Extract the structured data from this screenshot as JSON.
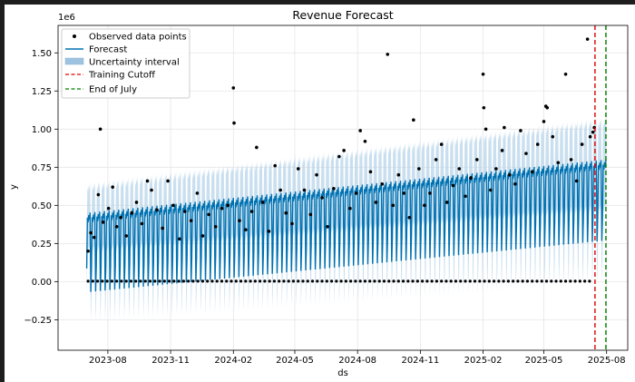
{
  "chart_data": {
    "type": "line",
    "title": "Revenue Forecast",
    "xlabel": "ds",
    "ylabel": "y",
    "y_offset_label": "1e6",
    "xlim": [
      "2023-05-20",
      "2025-09-01"
    ],
    "ylim": [
      -0.45,
      1.68
    ],
    "y_scale_note": "values in units of 1e6",
    "x_ticks": [
      {
        "date": "2023-08-01",
        "label": "2023-08"
      },
      {
        "date": "2023-11-01",
        "label": "2023-11"
      },
      {
        "date": "2024-02-01",
        "label": "2024-02"
      },
      {
        "date": "2024-05-01",
        "label": "2024-05"
      },
      {
        "date": "2024-08-01",
        "label": "2024-08"
      },
      {
        "date": "2024-11-01",
        "label": "2024-11"
      },
      {
        "date": "2025-02-01",
        "label": "2025-02"
      },
      {
        "date": "2025-05-01",
        "label": "2025-05"
      },
      {
        "date": "2025-08-01",
        "label": "2025-08"
      }
    ],
    "y_ticks": [
      {
        "value": 1.5,
        "label": "1.50"
      },
      {
        "value": 1.25,
        "label": "1.25"
      },
      {
        "value": 1.0,
        "label": "1.00"
      },
      {
        "value": 0.75,
        "label": "0.75"
      },
      {
        "value": 0.5,
        "label": "0.50"
      },
      {
        "value": 0.25,
        "label": "0.25"
      },
      {
        "value": 0.0,
        "label": "0.00"
      },
      {
        "value": -0.25,
        "label": "−0.25"
      }
    ],
    "grid": true,
    "legend": {
      "position": "top-left",
      "entries": [
        {
          "label": "Observed data points",
          "style": "dot",
          "color": "#000000"
        },
        {
          "label": "Forecast",
          "style": "line",
          "color": "#0072B2"
        },
        {
          "label": "Uncertainty interval",
          "style": "band",
          "color": "#9ec3e0"
        },
        {
          "label": "Training Cutoff",
          "style": "dashed",
          "color": "#e00000"
        },
        {
          "label": "End of July",
          "style": "dashed",
          "color": "#008000"
        }
      ]
    },
    "colors": {
      "forecast": "#0072B2",
      "band": "#b7d4ea",
      "cutoff": "#e00000",
      "end": "#008000",
      "points": "#000000"
    },
    "forecast": {
      "start": "2023-07-01",
      "end": "2025-07-31",
      "weekly_low_start": -0.07,
      "weekly_low_end": 0.27,
      "weekly_high_start": 0.45,
      "weekly_high_end": 0.8,
      "band_width": 0.2
    },
    "vlines": [
      {
        "name": "Training Cutoff",
        "date": "2025-07-15"
      },
      {
        "name": "End of July",
        "date": "2025-07-31"
      }
    ],
    "observed_points": [
      {
        "x": "2023-07-03",
        "y": 0.2
      },
      {
        "x": "2023-07-07",
        "y": 0.32
      },
      {
        "x": "2023-07-12",
        "y": 0.29
      },
      {
        "x": "2023-07-18",
        "y": 0.57
      },
      {
        "x": "2023-07-21",
        "y": 1.0
      },
      {
        "x": "2023-07-25",
        "y": 0.39
      },
      {
        "x": "2023-08-02",
        "y": 0.48
      },
      {
        "x": "2023-08-08",
        "y": 0.62
      },
      {
        "x": "2023-08-14",
        "y": 0.36
      },
      {
        "x": "2023-08-20",
        "y": 0.42
      },
      {
        "x": "2023-08-28",
        "y": 0.3
      },
      {
        "x": "2023-09-05",
        "y": 0.45
      },
      {
        "x": "2023-09-12",
        "y": 0.52
      },
      {
        "x": "2023-09-20",
        "y": 0.38
      },
      {
        "x": "2023-09-28",
        "y": 0.66
      },
      {
        "x": "2023-10-04",
        "y": 0.6
      },
      {
        "x": "2023-10-12",
        "y": 0.47
      },
      {
        "x": "2023-10-20",
        "y": 0.35
      },
      {
        "x": "2023-10-28",
        "y": 0.66
      },
      {
        "x": "2023-11-05",
        "y": 0.5
      },
      {
        "x": "2023-11-14",
        "y": 0.28
      },
      {
        "x": "2023-11-22",
        "y": 0.46
      },
      {
        "x": "2023-12-01",
        "y": 0.4
      },
      {
        "x": "2023-12-10",
        "y": 0.58
      },
      {
        "x": "2023-12-18",
        "y": 0.3
      },
      {
        "x": "2023-12-27",
        "y": 0.44
      },
      {
        "x": "2024-01-06",
        "y": 0.36
      },
      {
        "x": "2024-01-15",
        "y": 0.48
      },
      {
        "x": "2024-01-24",
        "y": 0.5
      },
      {
        "x": "2024-02-01",
        "y": 1.27
      },
      {
        "x": "2024-02-02",
        "y": 1.04
      },
      {
        "x": "2024-02-10",
        "y": 0.4
      },
      {
        "x": "2024-02-19",
        "y": 0.34
      },
      {
        "x": "2024-02-28",
        "y": 0.46
      },
      {
        "x": "2024-03-06",
        "y": 0.88
      },
      {
        "x": "2024-03-15",
        "y": 0.52
      },
      {
        "x": "2024-03-24",
        "y": 0.33
      },
      {
        "x": "2024-04-02",
        "y": 0.76
      },
      {
        "x": "2024-04-10",
        "y": 0.6
      },
      {
        "x": "2024-04-18",
        "y": 0.45
      },
      {
        "x": "2024-04-27",
        "y": 0.38
      },
      {
        "x": "2024-05-06",
        "y": 0.74
      },
      {
        "x": "2024-05-15",
        "y": 0.6
      },
      {
        "x": "2024-05-24",
        "y": 0.44
      },
      {
        "x": "2024-06-02",
        "y": 0.7
      },
      {
        "x": "2024-06-10",
        "y": 0.55
      },
      {
        "x": "2024-06-18",
        "y": 0.36
      },
      {
        "x": "2024-06-27",
        "y": 0.61
      },
      {
        "x": "2024-07-05",
        "y": 0.82
      },
      {
        "x": "2024-07-12",
        "y": 0.86
      },
      {
        "x": "2024-07-21",
        "y": 0.48
      },
      {
        "x": "2024-07-30",
        "y": 0.58
      },
      {
        "x": "2024-08-05",
        "y": 0.99
      },
      {
        "x": "2024-08-12",
        "y": 0.92
      },
      {
        "x": "2024-08-20",
        "y": 0.72
      },
      {
        "x": "2024-08-28",
        "y": 0.52
      },
      {
        "x": "2024-09-06",
        "y": 0.64
      },
      {
        "x": "2024-09-14",
        "y": 1.49
      },
      {
        "x": "2024-09-22",
        "y": 0.5
      },
      {
        "x": "2024-09-30",
        "y": 0.7
      },
      {
        "x": "2024-10-08",
        "y": 0.58
      },
      {
        "x": "2024-10-16",
        "y": 0.42
      },
      {
        "x": "2024-10-22",
        "y": 1.06
      },
      {
        "x": "2024-10-30",
        "y": 0.74
      },
      {
        "x": "2024-11-07",
        "y": 0.5
      },
      {
        "x": "2024-11-15",
        "y": 0.58
      },
      {
        "x": "2024-11-24",
        "y": 0.8
      },
      {
        "x": "2024-12-02",
        "y": 0.9
      },
      {
        "x": "2024-12-10",
        "y": 0.52
      },
      {
        "x": "2024-12-19",
        "y": 0.63
      },
      {
        "x": "2024-12-28",
        "y": 0.74
      },
      {
        "x": "2025-01-06",
        "y": 0.56
      },
      {
        "x": "2025-01-14",
        "y": 0.68
      },
      {
        "x": "2025-01-23",
        "y": 0.8
      },
      {
        "x": "2025-02-01",
        "y": 1.36
      },
      {
        "x": "2025-02-02",
        "y": 1.14
      },
      {
        "x": "2025-02-05",
        "y": 1.0
      },
      {
        "x": "2025-02-12",
        "y": 0.6
      },
      {
        "x": "2025-02-20",
        "y": 0.74
      },
      {
        "x": "2025-03-01",
        "y": 0.86
      },
      {
        "x": "2025-03-04",
        "y": 1.01
      },
      {
        "x": "2025-03-12",
        "y": 0.7
      },
      {
        "x": "2025-03-20",
        "y": 0.64
      },
      {
        "x": "2025-03-28",
        "y": 0.99
      },
      {
        "x": "2025-04-05",
        "y": 0.84
      },
      {
        "x": "2025-04-14",
        "y": 0.72
      },
      {
        "x": "2025-04-22",
        "y": 0.9
      },
      {
        "x": "2025-05-01",
        "y": 1.05
      },
      {
        "x": "2025-05-04",
        "y": 1.15
      },
      {
        "x": "2025-05-06",
        "y": 1.14
      },
      {
        "x": "2025-05-14",
        "y": 0.95
      },
      {
        "x": "2025-05-22",
        "y": 0.78
      },
      {
        "x": "2025-06-02",
        "y": 1.36
      },
      {
        "x": "2025-06-10",
        "y": 0.8
      },
      {
        "x": "2025-06-18",
        "y": 0.66
      },
      {
        "x": "2025-06-26",
        "y": 0.9
      },
      {
        "x": "2025-07-04",
        "y": 1.59
      },
      {
        "x": "2025-07-08",
        "y": 0.95
      },
      {
        "x": "2025-07-12",
        "y": 0.98
      },
      {
        "x": "2025-07-14",
        "y": 1.01
      }
    ]
  }
}
